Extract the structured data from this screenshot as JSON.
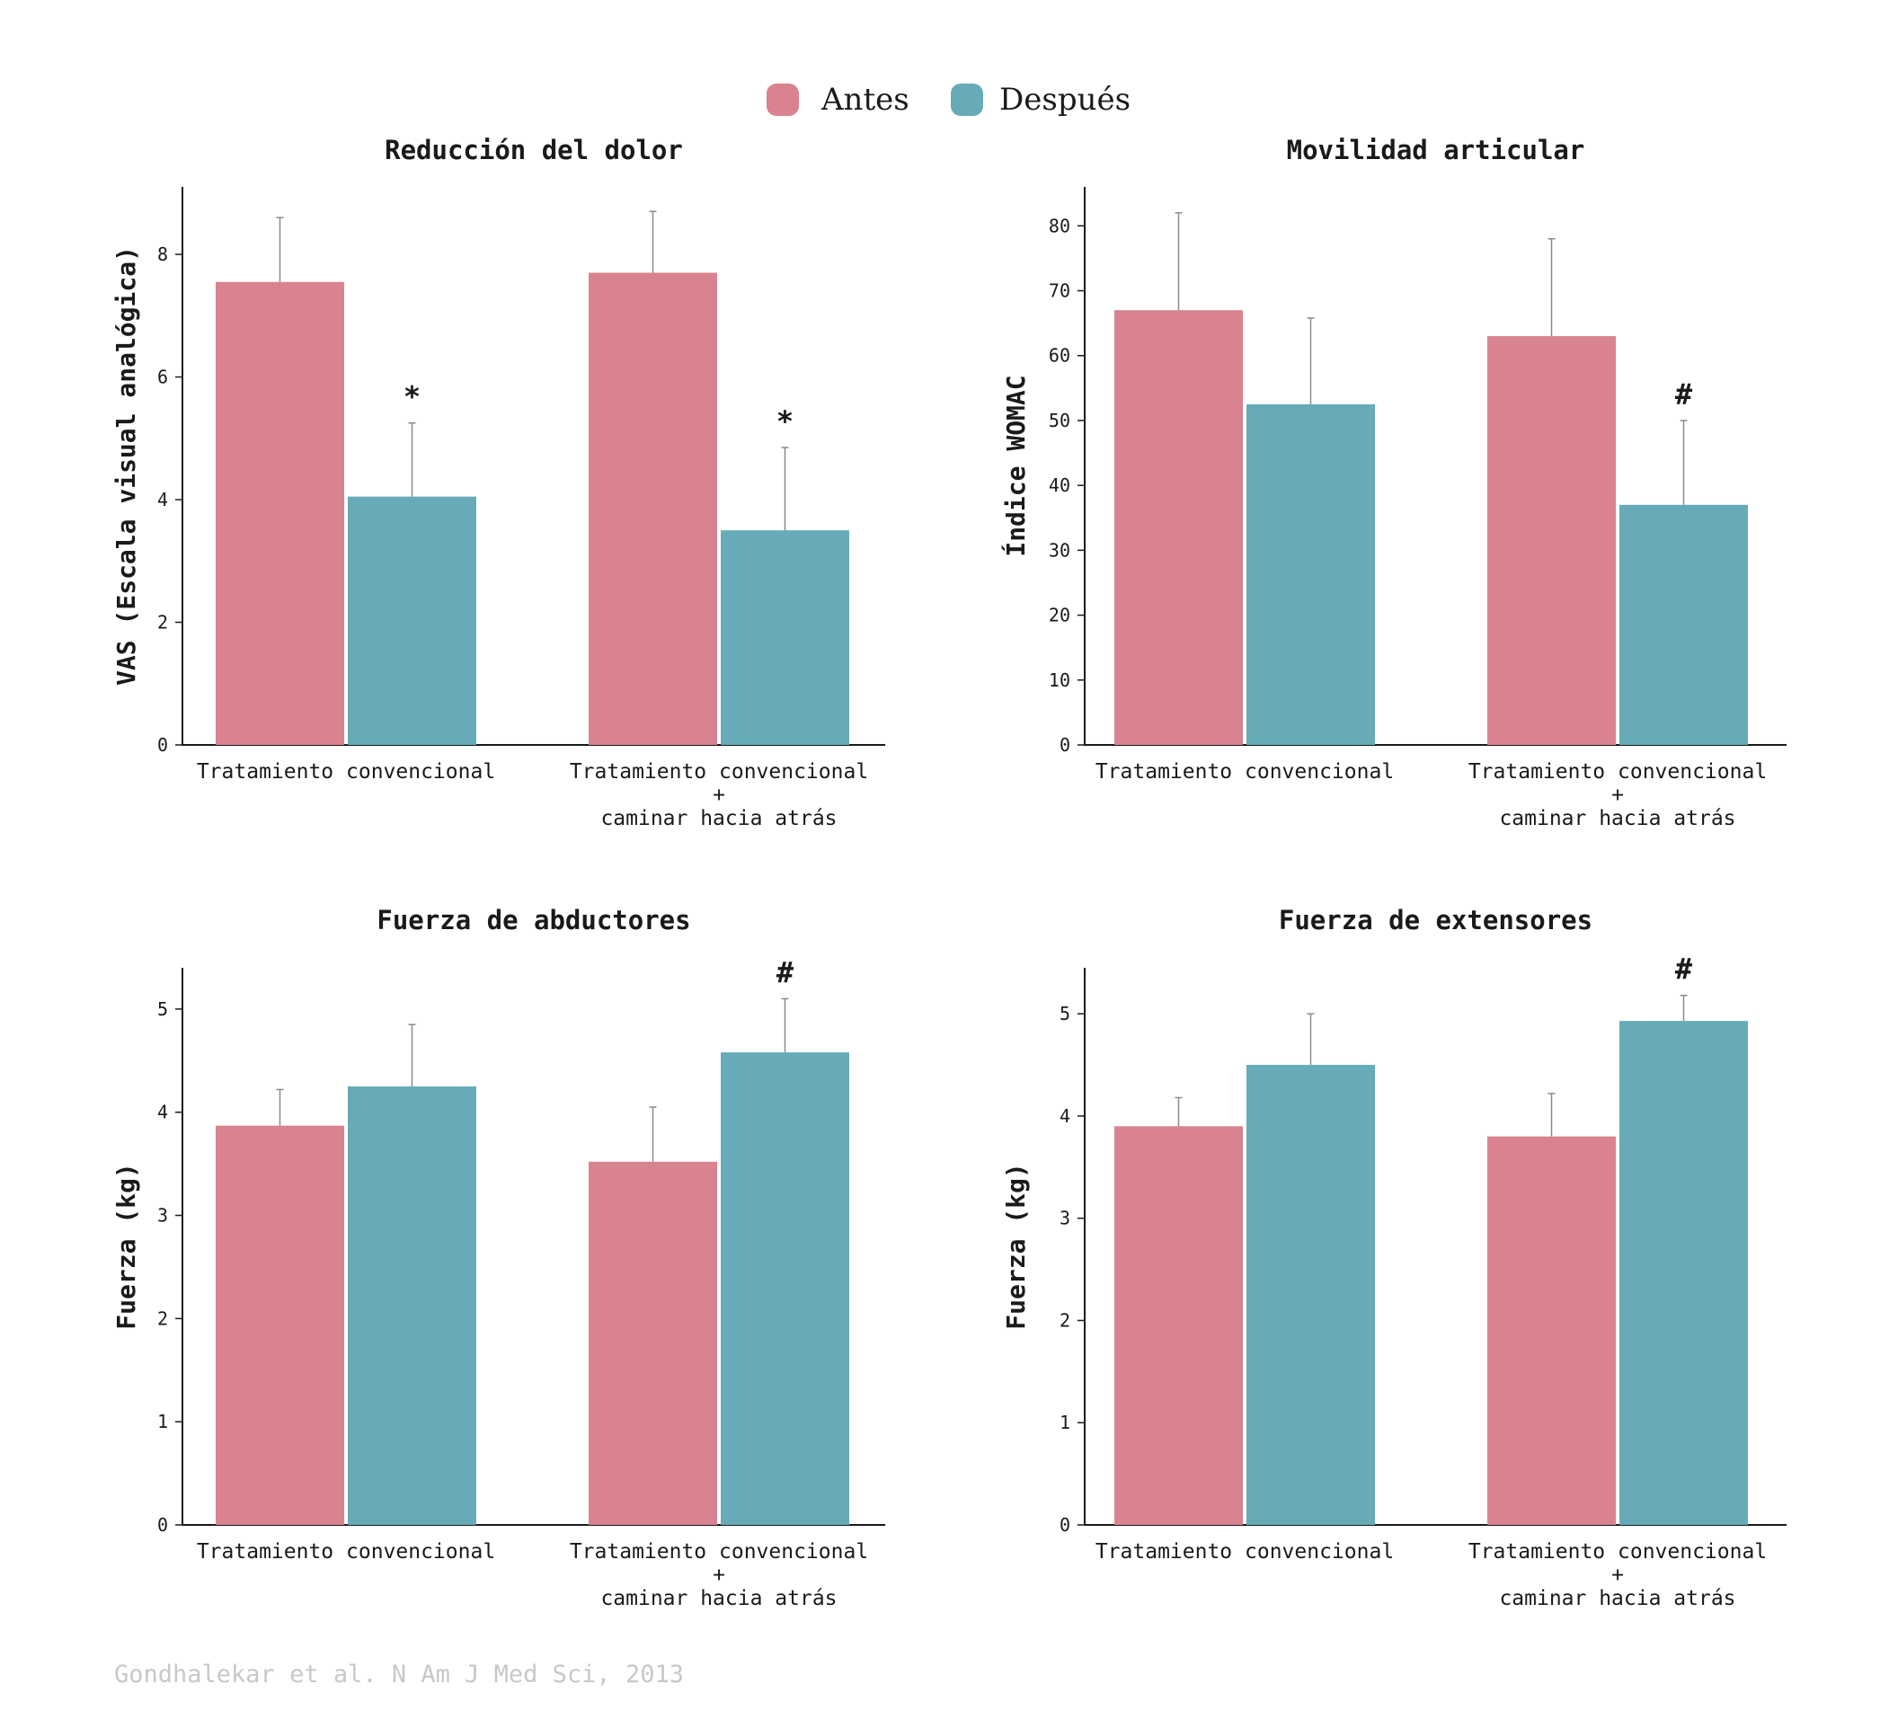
{
  "legend": {
    "antes_label": "Antes",
    "despues_label": "Después"
  },
  "colors": {
    "antes": "#D8838F",
    "despues": "#67ABB8",
    "axis": "#1a1a1a",
    "errorbar": "#8a8a8a",
    "source": "#c8c8c8"
  },
  "source": "Gondhalekar et al. N Am J Med Sci, 2013",
  "chart_data": [
    {
      "type": "bar",
      "title": "Reducción del dolor",
      "ylabel": "VAS (Escala visual analógica)",
      "ylim": [
        0,
        9.1
      ],
      "yticks": [
        0,
        2,
        4,
        6,
        8
      ],
      "categories": [
        [
          "Tratamiento convencional"
        ],
        [
          "Tratamiento convencional",
          "+",
          "caminar hacia atrás"
        ]
      ],
      "series": [
        {
          "name": "Antes",
          "values": [
            7.55,
            7.7
          ],
          "errors": [
            1.05,
            1.0
          ]
        },
        {
          "name": "Después",
          "values": [
            4.05,
            3.5
          ],
          "errors": [
            1.2,
            1.35
          ]
        }
      ],
      "annotations": [
        {
          "series": 1,
          "category": 0,
          "text": "*"
        },
        {
          "series": 1,
          "category": 1,
          "text": "*"
        }
      ]
    },
    {
      "type": "bar",
      "title": "Movilidad articular",
      "ylabel": "Índice WOMAC",
      "ylim": [
        0,
        86
      ],
      "yticks": [
        0,
        10,
        20,
        30,
        40,
        50,
        60,
        70,
        80
      ],
      "categories": [
        [
          "Tratamiento convencional"
        ],
        [
          "Tratamiento convencional",
          "+",
          "caminar hacia atrás"
        ]
      ],
      "series": [
        {
          "name": "Antes",
          "values": [
            67,
            63
          ],
          "errors": [
            15,
            15
          ]
        },
        {
          "name": "Después",
          "values": [
            52.5,
            37
          ],
          "errors": [
            13.3,
            13
          ]
        }
      ],
      "annotations": [
        {
          "series": 1,
          "category": 1,
          "text": "#"
        }
      ]
    },
    {
      "type": "bar",
      "title": "Fuerza de abductores",
      "ylabel": "Fuerza (kg)",
      "ylim": [
        0,
        5.4
      ],
      "yticks": [
        0,
        1,
        2,
        3,
        4,
        5
      ],
      "categories": [
        [
          "Tratamiento convencional"
        ],
        [
          "Tratamiento convencional",
          "+",
          "caminar hacia atrás"
        ]
      ],
      "series": [
        {
          "name": "Antes",
          "values": [
            3.87,
            3.52
          ],
          "errors": [
            0.35,
            0.53
          ]
        },
        {
          "name": "Después",
          "values": [
            4.25,
            4.58
          ],
          "errors": [
            0.6,
            0.52
          ]
        }
      ],
      "annotations": [
        {
          "series": 1,
          "category": 1,
          "text": "#"
        }
      ]
    },
    {
      "type": "bar",
      "title": "Fuerza de extensores",
      "ylabel": "Fuerza (kg)",
      "ylim": [
        0,
        5.45
      ],
      "yticks": [
        0,
        1,
        2,
        3,
        4,
        5
      ],
      "categories": [
        [
          "Tratamiento convencional"
        ],
        [
          "Tratamiento convencional",
          "+",
          "caminar hacia atrás"
        ]
      ],
      "series": [
        {
          "name": "Antes",
          "values": [
            3.9,
            3.8
          ],
          "errors": [
            0.28,
            0.42
          ]
        },
        {
          "name": "Después",
          "values": [
            4.5,
            4.93
          ],
          "errors": [
            0.5,
            0.25
          ]
        }
      ],
      "annotations": [
        {
          "series": 1,
          "category": 1,
          "text": "#"
        }
      ]
    }
  ]
}
